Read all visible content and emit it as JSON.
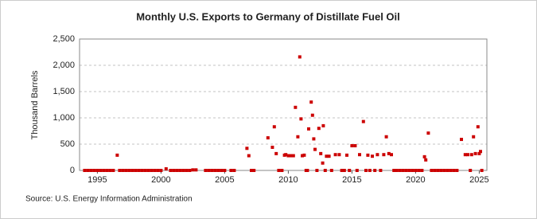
{
  "chart_data": {
    "type": "scatter",
    "title": "Monthly U.S. Exports to Germany of Distillate Fuel Oil",
    "y_label": "Thousand Barrels",
    "source": "Source: U.S. Energy Information Administration",
    "xlim": [
      1993.6,
      2025.6
    ],
    "ylim": [
      0,
      2500
    ],
    "xticks": [
      1995,
      2000,
      2005,
      2010,
      2015,
      2020,
      2025
    ],
    "yticks": [
      0,
      500,
      {
        "value": 1000,
        "label": "1,000"
      },
      {
        "value": 1500,
        "label": "1,500"
      },
      {
        "value": 2000,
        "label": "2,000"
      },
      {
        "value": 2500,
        "label": "2,500"
      }
    ],
    "grid": true,
    "series": [
      {
        "color": "#cc0000",
        "x": [
          1994.0,
          1994.25,
          1994.5,
          1994.75,
          1995.0,
          1995.25,
          1995.5,
          1995.75,
          1996.0,
          1996.25,
          1996.56,
          1996.75,
          1997.0,
          1997.25,
          1997.5,
          1997.75,
          1998.0,
          1998.25,
          1998.5,
          1998.75,
          1999.0,
          1999.25,
          1999.5,
          1999.75,
          2000.0,
          2000.4,
          2000.75,
          2001.0,
          2001.25,
          2001.5,
          2001.75,
          2002.0,
          2002.25,
          2002.5,
          2002.75,
          2003.5,
          2003.75,
          2004.0,
          2004.25,
          2004.5,
          2004.75,
          2005.0,
          2005.5,
          2005.75,
          2006.75,
          2006.9,
          2007.1,
          2007.3,
          2008.4,
          2008.75,
          2008.9,
          2009.05,
          2009.25,
          2009.5,
          2009.7,
          2009.8,
          2010.0,
          2010.2,
          2010.4,
          2010.56,
          2010.75,
          2010.9,
          2011.0,
          2011.1,
          2011.25,
          2011.4,
          2011.5,
          2011.6,
          2011.8,
          2011.9,
          2012.0,
          2012.1,
          2012.25,
          2012.4,
          2012.55,
          2012.7,
          2012.75,
          2012.9,
          2013.0,
          2013.2,
          2013.4,
          2013.7,
          2014.0,
          2014.2,
          2014.4,
          2014.6,
          2014.8,
          2015.0,
          2015.25,
          2015.4,
          2015.6,
          2015.9,
          2016.1,
          2016.25,
          2016.4,
          2016.6,
          2016.8,
          2017.0,
          2017.25,
          2017.5,
          2017.7,
          2017.9,
          2018.1,
          2018.3,
          2018.5,
          2018.75,
          2019.0,
          2019.25,
          2019.5,
          2019.75,
          2020.0,
          2020.25,
          2020.5,
          2020.7,
          2020.8,
          2021.0,
          2021.25,
          2021.5,
          2021.75,
          2022.0,
          2022.25,
          2022.5,
          2022.75,
          2023.0,
          2023.25,
          2023.6,
          2023.9,
          2024.1,
          2024.3,
          2024.4,
          2024.55,
          2024.7,
          2024.9,
          2025.0,
          2025.1,
          2025.2
        ],
        "values": [
          0,
          0,
          0,
          0,
          0,
          0,
          0,
          0,
          0,
          0,
          290,
          0,
          0,
          0,
          0,
          0,
          0,
          0,
          0,
          0,
          0,
          0,
          0,
          0,
          0,
          30,
          0,
          0,
          0,
          0,
          0,
          0,
          0,
          10,
          10,
          0,
          0,
          0,
          0,
          0,
          0,
          0,
          0,
          0,
          420,
          280,
          0,
          0,
          620,
          440,
          830,
          320,
          0,
          0,
          290,
          300,
          280,
          280,
          280,
          1200,
          640,
          2160,
          980,
          280,
          290,
          0,
          0,
          790,
          1300,
          1050,
          600,
          400,
          0,
          800,
          320,
          140,
          850,
          0,
          270,
          270,
          0,
          300,
          300,
          0,
          0,
          290,
          0,
          470,
          470,
          0,
          300,
          930,
          0,
          290,
          0,
          270,
          0,
          300,
          0,
          300,
          640,
          320,
          300,
          0,
          0,
          0,
          0,
          0,
          0,
          0,
          0,
          0,
          0,
          260,
          200,
          710,
          0,
          0,
          0,
          0,
          0,
          0,
          0,
          0,
          0,
          590,
          300,
          300,
          0,
          300,
          640,
          320,
          830,
          320,
          360,
          0
        ]
      }
    ]
  }
}
